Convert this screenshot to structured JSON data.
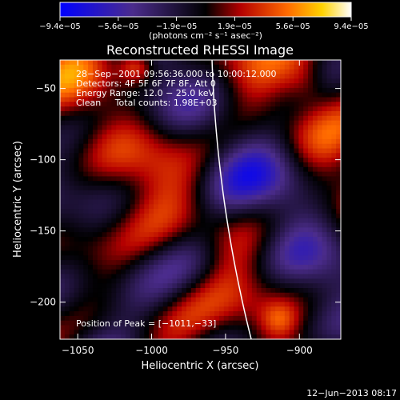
{
  "chart_data": {
    "type": "heatmap",
    "title": "Reconstructed RHESSI Image",
    "xlabel": "Heliocentric X (arcsec)",
    "ylabel": "Heliocentric Y (arcsec)",
    "xlim": [
      -1062,
      -872
    ],
    "ylim": [
      -226,
      -30
    ],
    "x_ticks": [
      {
        "value": -1050,
        "label": "−1050"
      },
      {
        "value": -1000,
        "label": "−1000"
      },
      {
        "value": -950,
        "label": "−950"
      },
      {
        "value": -900,
        "label": "−900"
      }
    ],
    "y_ticks": [
      {
        "value": -50,
        "label": "−50"
      },
      {
        "value": -100,
        "label": "−100"
      },
      {
        "value": -150,
        "label": "−150"
      },
      {
        "value": -200,
        "label": "−200"
      }
    ],
    "colorbar": {
      "range": [
        -9.4e-05,
        9.4e-05
      ],
      "tick_labels": [
        "−9.4e−05",
        "−5.6e−05",
        "−1.9e−05",
        "1.9e−05",
        "5.6e−05",
        "9.4e−05"
      ],
      "units_label": "(photons cm⁻² s⁻¹ asec⁻²)",
      "colors": [
        "#0000ff",
        "#4b2c8c",
        "#000000",
        "#b40000",
        "#ff6a00",
        "#ffd200",
        "#ffffff"
      ]
    },
    "annotations": [
      "28−Sep−2001 09:56:36.000 to 10:00:12.000",
      "Detectors: 4F 5F 6F 7F 8F, Att 0",
      "Energy Range: 12.0 − 25.0 keV",
      "Clean     Total counts: 1.98E+03"
    ],
    "peak_text": "Position of Peak = [−1011,−33]",
    "peak": {
      "x": -1011,
      "y": -33
    },
    "limb_color": "#ffffff"
  },
  "footer_date": "12−Jun−2013 08:17"
}
